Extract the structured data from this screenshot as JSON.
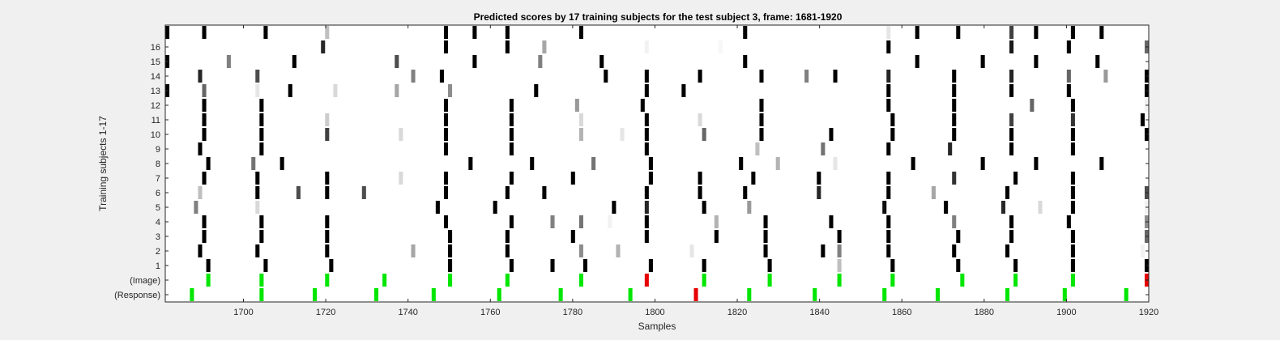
{
  "chart_data": {
    "type": "heatmap",
    "title": "Predicted scores by 17 training subjects for the test subject 3, frame: 1681-1920",
    "xlabel": "Samples",
    "ylabel": "Training subjects 1-17",
    "xlim": [
      1681,
      1920
    ],
    "x_ticks": [
      "1700",
      "1720",
      "1740",
      "1760",
      "1780",
      "1800",
      "1820",
      "1840",
      "1860",
      "1880",
      "1900",
      "1920"
    ],
    "y_tick_labels": [
      "(Response)",
      "(Image)",
      "1",
      "2",
      "3",
      "4",
      "5",
      "6",
      "7",
      "8",
      "9",
      "10",
      "11",
      "12",
      "13",
      "14",
      "15",
      "16"
    ],
    "colormap": "gray (darker = higher score)",
    "colors": {
      "hit": "#00e600",
      "miss": "#e60000",
      "background": "#ffffff"
    },
    "rows": [
      {
        "label": "(Response)",
        "marks": [
          [
            1687,
            "hit"
          ],
          [
            1704,
            "hit"
          ],
          [
            1717,
            "hit"
          ],
          [
            1732,
            "hit"
          ],
          [
            1746,
            "hit"
          ],
          [
            1762,
            "hit"
          ],
          [
            1777,
            "hit"
          ],
          [
            1794,
            "hit"
          ],
          [
            1810,
            "miss"
          ],
          [
            1823,
            "hit"
          ],
          [
            1839,
            "hit"
          ],
          [
            1856,
            "hit"
          ],
          [
            1869,
            "hit"
          ],
          [
            1886,
            "hit"
          ],
          [
            1900,
            "hit"
          ],
          [
            1915,
            "hit"
          ]
        ]
      },
      {
        "label": "(Image)",
        "marks": [
          [
            1691,
            "hit"
          ],
          [
            1704,
            "hit"
          ],
          [
            1720,
            "hit"
          ],
          [
            1734,
            "hit"
          ],
          [
            1750,
            "hit"
          ],
          [
            1764,
            "hit"
          ],
          [
            1782,
            "hit"
          ],
          [
            1798,
            "miss"
          ],
          [
            1812,
            "hit"
          ],
          [
            1828,
            "hit"
          ],
          [
            1845,
            "hit"
          ],
          [
            1858,
            "hit"
          ],
          [
            1875,
            "hit"
          ],
          [
            1888,
            "hit"
          ],
          [
            1902,
            "hit"
          ],
          [
            1920,
            "miss"
          ]
        ]
      },
      {
        "label": "1",
        "cells": [
          [
            1691,
            1.0
          ],
          [
            1705,
            1.0
          ],
          [
            1721,
            1.0
          ],
          [
            1750,
            1.0
          ],
          [
            1765,
            1.0
          ],
          [
            1775,
            1.0
          ],
          [
            1783,
            1.0
          ],
          [
            1799,
            1.0
          ],
          [
            1812,
            1.0
          ],
          [
            1828,
            1.0
          ],
          [
            1845,
            0.25
          ],
          [
            1858,
            1.0
          ],
          [
            1874,
            1.0
          ],
          [
            1888,
            1.0
          ],
          [
            1902,
            1.0
          ],
          [
            1920,
            1.0
          ]
        ]
      },
      {
        "label": "2",
        "cells": [
          [
            1689,
            1.0
          ],
          [
            1703,
            1.0
          ],
          [
            1720,
            1.0
          ],
          [
            1741,
            0.35
          ],
          [
            1750,
            1.0
          ],
          [
            1764,
            1.0
          ],
          [
            1782,
            0.45
          ],
          [
            1791,
            0.3
          ],
          [
            1809,
            0.1
          ],
          [
            1827,
            1.0
          ],
          [
            1841,
            1.0
          ],
          [
            1845,
            0.5
          ],
          [
            1857,
            1.0
          ],
          [
            1873,
            1.0
          ],
          [
            1886,
            1.0
          ],
          [
            1902,
            1.0
          ],
          [
            1919,
            0.05
          ]
        ]
      },
      {
        "label": "3",
        "cells": [
          [
            1690,
            1.0
          ],
          [
            1704,
            1.0
          ],
          [
            1720,
            1.0
          ],
          [
            1750,
            1.0
          ],
          [
            1764,
            1.0
          ],
          [
            1780,
            1.0
          ],
          [
            1798,
            1.0
          ],
          [
            1815,
            1.0
          ],
          [
            1827,
            1.0
          ],
          [
            1845,
            1.0
          ],
          [
            1857,
            1.0
          ],
          [
            1874,
            1.0
          ],
          [
            1887,
            1.0
          ],
          [
            1902,
            1.0
          ],
          [
            1920,
            0.6
          ]
        ]
      },
      {
        "label": "4",
        "cells": [
          [
            1690,
            1.0
          ],
          [
            1704,
            1.0
          ],
          [
            1720,
            1.0
          ],
          [
            1749,
            1.0
          ],
          [
            1765,
            1.0
          ],
          [
            1775,
            0.5
          ],
          [
            1782,
            0.55
          ],
          [
            1789,
            0.05
          ],
          [
            1798,
            1.0
          ],
          [
            1815,
            0.3
          ],
          [
            1827,
            1.0
          ],
          [
            1843,
            1.0
          ],
          [
            1857,
            1.0
          ],
          [
            1873,
            0.5
          ],
          [
            1887,
            1.0
          ],
          [
            1901,
            1.0
          ],
          [
            1920,
            0.45
          ]
        ]
      },
      {
        "label": "5",
        "cells": [
          [
            1688,
            0.5
          ],
          [
            1703,
            0.15
          ],
          [
            1747,
            1.0
          ],
          [
            1761,
            1.0
          ],
          [
            1790,
            1.0
          ],
          [
            1798,
            0.85
          ],
          [
            1812,
            1.0
          ],
          [
            1823,
            0.4
          ],
          [
            1856,
            0.95
          ],
          [
            1871,
            1.0
          ],
          [
            1885,
            0.85
          ],
          [
            1894,
            0.15
          ],
          [
            1902,
            1.0
          ],
          [
            1920,
            0.05
          ]
        ]
      },
      {
        "label": "6",
        "cells": [
          [
            1689,
            0.25
          ],
          [
            1703,
            1.0
          ],
          [
            1713,
            0.7
          ],
          [
            1720,
            1.0
          ],
          [
            1729,
            0.7
          ],
          [
            1749,
            1.0
          ],
          [
            1764,
            1.0
          ],
          [
            1773,
            1.0
          ],
          [
            1798,
            1.0
          ],
          [
            1811,
            1.0
          ],
          [
            1822,
            1.0
          ],
          [
            1840,
            0.85
          ],
          [
            1857,
            1.0
          ],
          [
            1868,
            0.35
          ],
          [
            1886,
            1.0
          ],
          [
            1902,
            1.0
          ],
          [
            1920,
            0.7
          ]
        ]
      },
      {
        "label": "7",
        "cells": [
          [
            1690,
            1.0
          ],
          [
            1703,
            1.0
          ],
          [
            1720,
            1.0
          ],
          [
            1738,
            0.15
          ],
          [
            1749,
            1.0
          ],
          [
            1765,
            1.0
          ],
          [
            1780,
            1.0
          ],
          [
            1799,
            1.0
          ],
          [
            1811,
            1.0
          ],
          [
            1824,
            1.0
          ],
          [
            1840,
            1.0
          ],
          [
            1857,
            1.0
          ],
          [
            1873,
            0.8
          ],
          [
            1888,
            1.0
          ],
          [
            1902,
            1.0
          ]
        ]
      },
      {
        "label": "8",
        "cells": [
          [
            1691,
            1.0
          ],
          [
            1702,
            0.55
          ],
          [
            1709,
            1.0
          ],
          [
            1755,
            1.0
          ],
          [
            1770,
            1.0
          ],
          [
            1785,
            0.55
          ],
          [
            1799,
            1.0
          ],
          [
            1821,
            1.0
          ],
          [
            1830,
            0.3
          ],
          [
            1844,
            0.1
          ],
          [
            1863,
            1.0
          ],
          [
            1880,
            1.0
          ],
          [
            1893,
            1.0
          ],
          [
            1909,
            1.0
          ]
        ]
      },
      {
        "label": "9",
        "cells": [
          [
            1689,
            1.0
          ],
          [
            1704,
            1.0
          ],
          [
            1749,
            1.0
          ],
          [
            1765,
            1.0
          ],
          [
            1798,
            1.0
          ],
          [
            1825,
            0.25
          ],
          [
            1841,
            0.55
          ],
          [
            1857,
            1.0
          ],
          [
            1872,
            0.85
          ],
          [
            1887,
            1.0
          ],
          [
            1902,
            1.0
          ]
        ]
      },
      {
        "label": "10",
        "cells": [
          [
            1690,
            1.0
          ],
          [
            1704,
            1.0
          ],
          [
            1720,
            0.75
          ],
          [
            1738,
            0.15
          ],
          [
            1749,
            1.0
          ],
          [
            1765,
            1.0
          ],
          [
            1782,
            0.3
          ],
          [
            1792,
            0.1
          ],
          [
            1798,
            1.0
          ],
          [
            1812,
            0.6
          ],
          [
            1826,
            1.0
          ],
          [
            1843,
            1.0
          ],
          [
            1858,
            1.0
          ],
          [
            1873,
            1.0
          ],
          [
            1887,
            1.0
          ],
          [
            1902,
            1.0
          ],
          [
            1920,
            1.0
          ]
        ]
      },
      {
        "label": "11",
        "cells": [
          [
            1690,
            1.0
          ],
          [
            1704,
            1.0
          ],
          [
            1720,
            0.2
          ],
          [
            1749,
            1.0
          ],
          [
            1765,
            1.0
          ],
          [
            1782,
            0.15
          ],
          [
            1798,
            1.0
          ],
          [
            1811,
            0.15
          ],
          [
            1826,
            1.0
          ],
          [
            1858,
            1.0
          ],
          [
            1873,
            1.0
          ],
          [
            1887,
            0.75
          ],
          [
            1902,
            0.8
          ],
          [
            1919,
            1.0
          ]
        ]
      },
      {
        "label": "12",
        "cells": [
          [
            1690,
            1.0
          ],
          [
            1704,
            1.0
          ],
          [
            1749,
            1.0
          ],
          [
            1765,
            1.0
          ],
          [
            1781,
            0.4
          ],
          [
            1797,
            1.0
          ],
          [
            1826,
            1.0
          ],
          [
            1857,
            1.0
          ],
          [
            1873,
            1.0
          ],
          [
            1892,
            0.6
          ],
          [
            1902,
            1.0
          ],
          [
            1920,
            0.05
          ]
        ]
      },
      {
        "label": "13",
        "cells": [
          [
            1681,
            1.0
          ],
          [
            1690,
            0.6
          ],
          [
            1703,
            0.1
          ],
          [
            1711,
            1.0
          ],
          [
            1722,
            0.15
          ],
          [
            1737,
            0.35
          ],
          [
            1750,
            0.45
          ],
          [
            1771,
            1.0
          ],
          [
            1798,
            1.0
          ],
          [
            1807,
            1.0
          ],
          [
            1857,
            1.0
          ],
          [
            1873,
            1.0
          ],
          [
            1887,
            1.0
          ],
          [
            1901,
            1.0
          ],
          [
            1920,
            1.0
          ]
        ]
      },
      {
        "label": "14",
        "cells": [
          [
            1689,
            0.85
          ],
          [
            1703,
            0.7
          ],
          [
            1741,
            0.5
          ],
          [
            1748,
            1.0
          ],
          [
            1788,
            1.0
          ],
          [
            1798,
            1.0
          ],
          [
            1811,
            1.0
          ],
          [
            1826,
            1.0
          ],
          [
            1837,
            0.5
          ],
          [
            1844,
            1.0
          ],
          [
            1857,
            0.85
          ],
          [
            1873,
            1.0
          ],
          [
            1887,
            0.85
          ],
          [
            1901,
            0.6
          ],
          [
            1910,
            0.4
          ],
          [
            1920,
            1.0
          ]
        ]
      },
      {
        "label": "15",
        "cells": [
          [
            1681,
            1.0
          ],
          [
            1696,
            0.5
          ],
          [
            1712,
            1.0
          ],
          [
            1737,
            0.7
          ],
          [
            1756,
            1.0
          ],
          [
            1772,
            0.5
          ],
          [
            1787,
            1.0
          ],
          [
            1822,
            1.0
          ],
          [
            1864,
            1.0
          ],
          [
            1880,
            1.0
          ],
          [
            1893,
            1.0
          ],
          [
            1908,
            1.0
          ]
        ]
      },
      {
        "label": "16",
        "cells": [
          [
            1719,
            0.85
          ],
          [
            1749,
            1.0
          ],
          [
            1764,
            1.0
          ],
          [
            1773,
            0.35
          ],
          [
            1798,
            0.05
          ],
          [
            1816,
            0.03
          ],
          [
            1857,
            1.0
          ],
          [
            1887,
            0.9
          ],
          [
            1901,
            1.0
          ],
          [
            1920,
            0.6
          ]
        ]
      },
      {
        "label": "",
        "cells": [
          [
            1681,
            1.0
          ],
          [
            1690,
            1.0
          ],
          [
            1705,
            1.0
          ],
          [
            1720,
            0.25
          ],
          [
            1749,
            1.0
          ],
          [
            1756,
            1.0
          ],
          [
            1764,
            1.0
          ],
          [
            1782,
            1.0
          ],
          [
            1822,
            1.0
          ],
          [
            1857,
            0.1
          ],
          [
            1864,
            1.0
          ],
          [
            1874,
            1.0
          ],
          [
            1887,
            0.75
          ],
          [
            1893,
            1.0
          ],
          [
            1902,
            1.0
          ],
          [
            1909,
            1.0
          ]
        ]
      }
    ]
  }
}
